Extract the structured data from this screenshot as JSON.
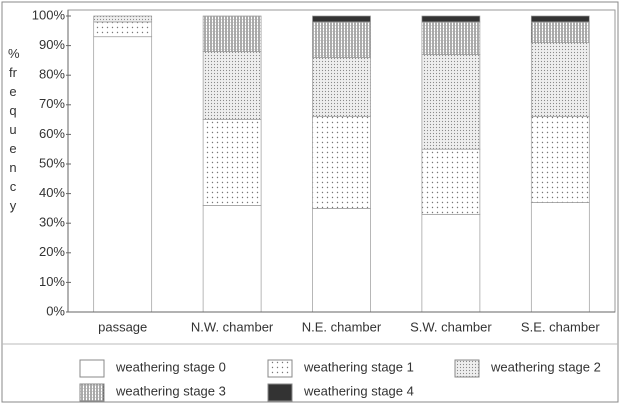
{
  "chart_data": {
    "type": "stacked-bar",
    "y_label": "% frequency",
    "categories": [
      "passage",
      "N.W. chamber",
      "N.E. chamber",
      "S.W. chamber",
      "S.E. chamber"
    ],
    "series": [
      {
        "name": "weathering stage 0",
        "color": "#ffffff",
        "pattern": "none",
        "values": [
          93,
          36,
          35,
          33,
          37
        ]
      },
      {
        "name": "weathering stage 1",
        "color": "#ffffff",
        "pattern": "dots",
        "values": [
          5,
          29,
          31,
          22,
          29
        ]
      },
      {
        "name": "weathering stage 2",
        "color": "#e4e4e4",
        "pattern": "fine-dots",
        "values": [
          2,
          23,
          20,
          32,
          25
        ]
      },
      {
        "name": "weathering stage 3",
        "color": "#ffffff",
        "pattern": "vertical-lines",
        "values": [
          0,
          12,
          12,
          11,
          7
        ]
      },
      {
        "name": "weathering stage 4",
        "color": "#333333",
        "pattern": "solid",
        "values": [
          0,
          0,
          2,
          2,
          2
        ]
      }
    ],
    "ylim": [
      0,
      100
    ],
    "yticks": [
      {
        "value": 0,
        "label": "0%"
      },
      {
        "value": 10,
        "label": "10%"
      },
      {
        "value": 20,
        "label": "20%"
      },
      {
        "value": 30,
        "label": "30%"
      },
      {
        "value": 40,
        "label": "40%"
      },
      {
        "value": 50,
        "label": "50%"
      },
      {
        "value": 60,
        "label": "60%"
      },
      {
        "value": 70,
        "label": "70%"
      },
      {
        "value": 80,
        "label": "80%"
      },
      {
        "value": 90,
        "label": "90%"
      },
      {
        "value": 100,
        "label": "100%"
      }
    ],
    "legend": "bottom"
  }
}
